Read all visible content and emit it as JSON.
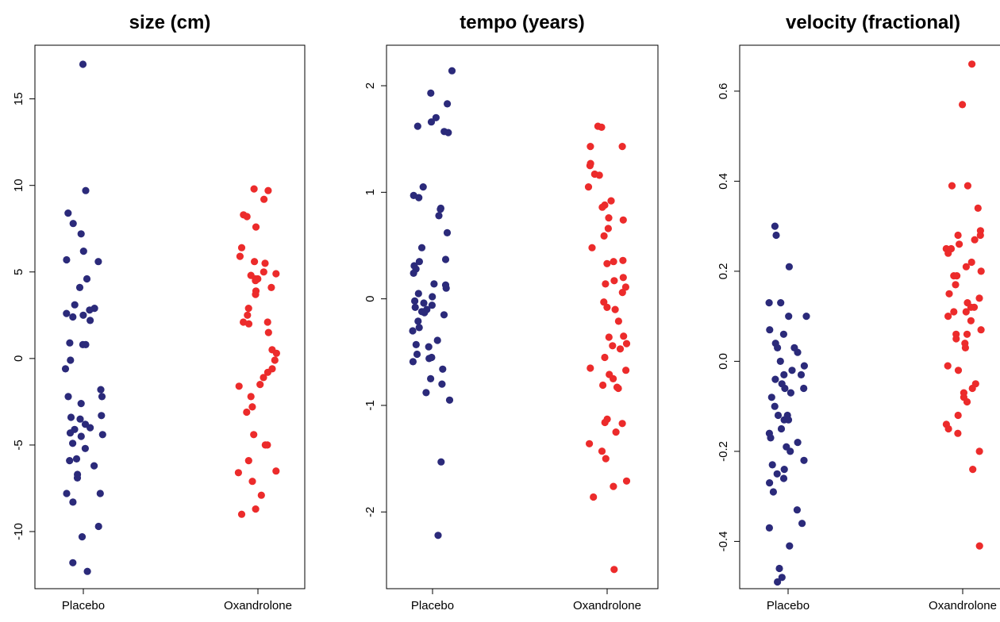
{
  "chart_data": [
    {
      "type": "scatter",
      "title": "size (cm)",
      "categories": [
        "Placebo",
        "Oxandrolone"
      ],
      "colors": [
        "#2b2a7a",
        "#ec2b2b"
      ],
      "ylim": [
        -13.3,
        18.1
      ],
      "yticks": [
        15,
        10,
        5,
        0,
        -5,
        -10
      ],
      "ytick_labels": [
        "15",
        "10",
        "5",
        "0",
        "-5",
        "-10"
      ],
      "series": [
        {
          "values": [
            17.0,
            9.7,
            8.4,
            7.8,
            7.2,
            6.2,
            5.7,
            5.6,
            4.6,
            4.1,
            3.1,
            2.9,
            2.8,
            2.6,
            2.5,
            2.4,
            2.2,
            0.9,
            0.8,
            0.8,
            -0.1,
            -0.6,
            -1.8,
            -2.2,
            -2.2,
            -2.6,
            -3.3,
            -3.4,
            -3.5,
            -3.8,
            -4.0,
            -4.1,
            -4.3,
            -4.4,
            -4.5,
            -4.9,
            -5.2,
            -5.8,
            -5.9,
            -6.2,
            -6.7,
            -6.9,
            -7.8,
            -7.8,
            -8.3,
            -9.7,
            -10.3,
            -11.8,
            -12.3
          ]
        },
        {
          "values": [
            9.8,
            9.7,
            9.2,
            8.3,
            8.2,
            7.6,
            6.4,
            5.9,
            5.6,
            5.5,
            5.0,
            4.9,
            4.8,
            4.6,
            4.6,
            4.5,
            4.1,
            3.9,
            3.7,
            2.9,
            2.5,
            2.1,
            2.1,
            2.0,
            1.5,
            0.5,
            0.3,
            -0.1,
            -0.6,
            -0.8,
            -1.1,
            -1.5,
            -1.6,
            -2.2,
            -2.8,
            -3.1,
            -4.4,
            -5.0,
            -5.0,
            -5.9,
            -6.5,
            -6.6,
            -7.1,
            -7.9,
            -8.7,
            -9.0
          ]
        }
      ]
    },
    {
      "type": "scatter",
      "title": "tempo (years)",
      "categories": [
        "Placebo",
        "Oxandrolone"
      ],
      "colors": [
        "#2b2a7a",
        "#ec2b2b"
      ],
      "ylim": [
        -2.72,
        2.38
      ],
      "yticks": [
        2,
        1,
        0,
        -1,
        -2
      ],
      "ytick_labels": [
        "2",
        "1",
        "0",
        "-1",
        "-2"
      ],
      "series": [
        {
          "values": [
            2.14,
            1.93,
            1.83,
            1.7,
            1.66,
            1.62,
            1.57,
            1.56,
            1.05,
            0.97,
            0.95,
            0.85,
            0.84,
            0.78,
            0.62,
            0.48,
            0.37,
            0.35,
            0.31,
            0.28,
            0.24,
            0.14,
            0.13,
            0.1,
            0.05,
            0.02,
            -0.02,
            -0.04,
            -0.06,
            -0.08,
            -0.1,
            -0.12,
            -0.13,
            -0.15,
            -0.21,
            -0.27,
            -0.3,
            -0.39,
            -0.43,
            -0.45,
            -0.52,
            -0.55,
            -0.56,
            -0.59,
            -0.66,
            -0.75,
            -0.8,
            -0.88,
            -0.95,
            -1.53,
            -2.22
          ]
        },
        {
          "values": [
            1.62,
            1.61,
            1.43,
            1.43,
            1.27,
            1.25,
            1.17,
            1.16,
            1.05,
            0.92,
            0.88,
            0.86,
            0.76,
            0.74,
            0.66,
            0.59,
            0.48,
            0.36,
            0.35,
            0.33,
            0.2,
            0.17,
            0.14,
            0.11,
            0.06,
            -0.03,
            -0.08,
            -0.1,
            -0.21,
            -0.35,
            -0.36,
            -0.42,
            -0.44,
            -0.47,
            -0.55,
            -0.65,
            -0.67,
            -0.71,
            -0.75,
            -0.81,
            -0.83,
            -0.84,
            -1.13,
            -1.16,
            -1.17,
            -1.25,
            -1.36,
            -1.43,
            -1.5,
            -1.71,
            -1.76,
            -1.86,
            -2.54
          ]
        }
      ]
    },
    {
      "type": "scatter",
      "title": "velocity (fractional)",
      "categories": [
        "Placebo",
        "Oxandrolone"
      ],
      "colors": [
        "#2b2a7a",
        "#ec2b2b"
      ],
      "ylim": [
        -0.505,
        0.702
      ],
      "yticks": [
        0.6,
        0.4,
        0.2,
        0.0,
        -0.2,
        -0.4
      ],
      "ytick_labels": [
        "0.6",
        "0.4",
        "0.2",
        "0.0",
        "-0.2",
        "-0.4"
      ],
      "series": [
        {
          "values": [
            0.3,
            0.28,
            0.21,
            0.13,
            0.13,
            0.1,
            0.1,
            0.07,
            0.06,
            0.04,
            0.03,
            0.03,
            0.02,
            0.0,
            -0.01,
            -0.02,
            -0.03,
            -0.03,
            -0.04,
            -0.05,
            -0.06,
            -0.06,
            -0.07,
            -0.08,
            -0.1,
            -0.12,
            -0.12,
            -0.13,
            -0.13,
            -0.15,
            -0.16,
            -0.17,
            -0.18,
            -0.19,
            -0.2,
            -0.22,
            -0.23,
            -0.24,
            -0.25,
            -0.26,
            -0.27,
            -0.29,
            -0.33,
            -0.36,
            -0.37,
            -0.41,
            -0.46,
            -0.48,
            -0.49
          ]
        },
        {
          "values": [
            0.66,
            0.57,
            0.39,
            0.39,
            0.34,
            0.29,
            0.28,
            0.28,
            0.27,
            0.26,
            0.25,
            0.25,
            0.24,
            0.22,
            0.21,
            0.2,
            0.19,
            0.19,
            0.17,
            0.15,
            0.14,
            0.13,
            0.12,
            0.12,
            0.11,
            0.11,
            0.1,
            0.09,
            0.07,
            0.06,
            0.06,
            0.05,
            0.04,
            0.03,
            -0.01,
            -0.02,
            -0.05,
            -0.06,
            -0.07,
            -0.08,
            -0.09,
            -0.12,
            -0.14,
            -0.15,
            -0.16,
            -0.2,
            -0.24,
            -0.41
          ]
        }
      ]
    }
  ]
}
